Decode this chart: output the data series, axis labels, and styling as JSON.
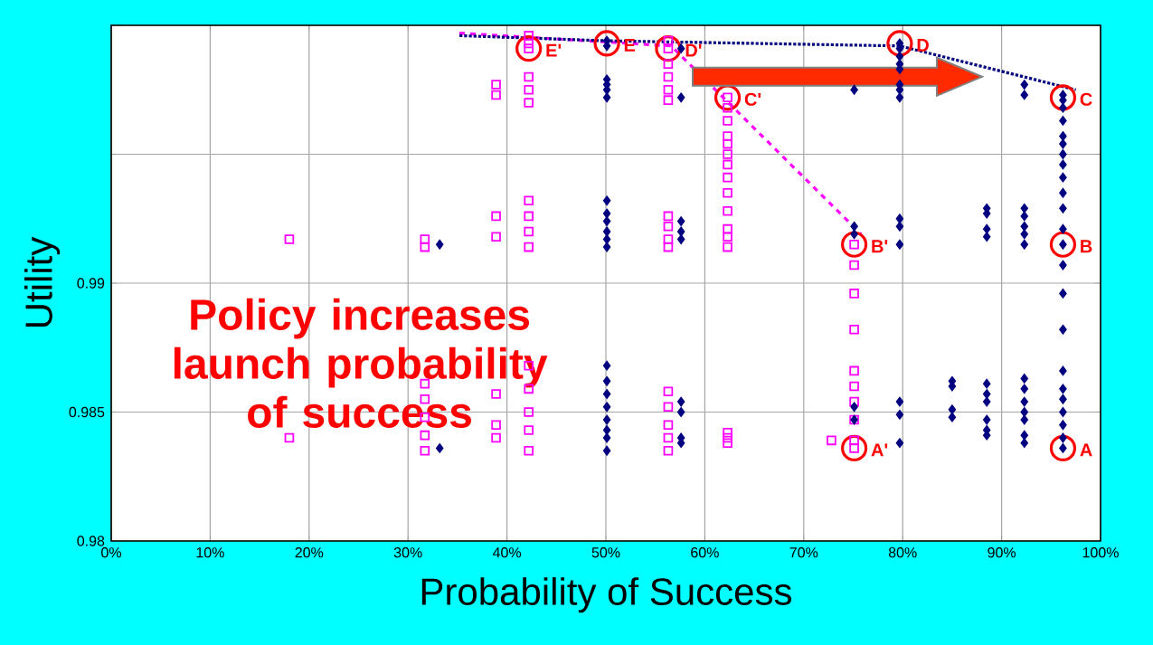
{
  "chart_data": {
    "type": "scatter",
    "xlabel": "Probability of Success",
    "ylabel": "Utility",
    "xlim": [
      0,
      100
    ],
    "ylim": [
      0.98,
      1.0
    ],
    "xticks": [
      {
        "value": 0,
        "label": "0%"
      },
      {
        "value": 10,
        "label": "10%"
      },
      {
        "value": 20,
        "label": "20%"
      },
      {
        "value": 30,
        "label": "30%"
      },
      {
        "value": 40,
        "label": "40%"
      },
      {
        "value": 50,
        "label": "50%"
      },
      {
        "value": 60,
        "label": "60%"
      },
      {
        "value": 70,
        "label": "70%"
      },
      {
        "value": 80,
        "label": "80%"
      },
      {
        "value": 90,
        "label": "90%"
      },
      {
        "value": 100,
        "label": "100%"
      }
    ],
    "yticks": [
      0.98,
      0.985,
      0.99,
      {
        "value": 0.995,
        "label": null
      },
      {
        "value": 1.0,
        "label": null
      }
    ],
    "grid": true,
    "series": [
      {
        "color": "#ff00ff",
        "marker": "square",
        "x": [
          18,
          18,
          31.7,
          31.7,
          31.7,
          31.7,
          31.7,
          31.7,
          31.7,
          38.9,
          38.9,
          38.9,
          38.9,
          38.9,
          38.9,
          38.9,
          42.2,
          42.2,
          42.2,
          42.2,
          42.2,
          42.2,
          42.2,
          42.2,
          42.2,
          42.2,
          42.2,
          42.2,
          42.2,
          42.2,
          42.2,
          56.3,
          56.3,
          56.3,
          56.3,
          56.3,
          56.3,
          56.3,
          56.3,
          56.3,
          56.3,
          56.3,
          56.3,
          56.3,
          56.3,
          56.3,
          62.3,
          62.3,
          62.3,
          62.3,
          62.3,
          62.3,
          62.3,
          62.3,
          62.3,
          62.3,
          62.3,
          62.3,
          62.3,
          62.3,
          62.3,
          62.3,
          72.8,
          75.1,
          75.1,
          75.1,
          75.1,
          75.1,
          75.1,
          75.1,
          75.1,
          75.1,
          75.1
        ],
        "values": [
          0.9917,
          0.984,
          0.9917,
          0.9914,
          0.9861,
          0.9855,
          0.9848,
          0.9841,
          0.9835,
          0.9977,
          0.9973,
          0.9926,
          0.9918,
          0.9857,
          0.9845,
          0.984,
          0.9996,
          0.9993,
          0.9991,
          0.998,
          0.9975,
          0.997,
          0.9932,
          0.9926,
          0.992,
          0.9914,
          0.9868,
          0.9859,
          0.985,
          0.9843,
          0.9835,
          0.9994,
          0.9991,
          0.9985,
          0.998,
          0.9975,
          0.9971,
          0.9926,
          0.9922,
          0.9917,
          0.9914,
          0.9858,
          0.9852,
          0.9845,
          0.984,
          0.9835,
          0.9972,
          0.9968,
          0.9963,
          0.9957,
          0.9954,
          0.995,
          0.9946,
          0.9941,
          0.9935,
          0.9928,
          0.9921,
          0.9918,
          0.9914,
          0.9842,
          0.984,
          0.9838,
          0.9839,
          0.9915,
          0.9907,
          0.9896,
          0.9882,
          0.9866,
          0.986,
          0.9854,
          0.9847,
          0.9839,
          0.9836
        ]
      },
      {
        "color": "#000080",
        "marker": "diamond",
        "x": [
          33.2,
          33.2,
          50.1,
          50.1,
          50.1,
          50.1,
          50.1,
          50.1,
          50.1,
          50.1,
          50.1,
          50.1,
          50.1,
          50.1,
          50.1,
          50.1,
          50.1,
          50.1,
          50.1,
          50.1,
          50.1,
          50.1,
          57.6,
          57.6,
          57.6,
          57.6,
          57.6,
          57.6,
          57.6,
          57.6,
          57.6,
          75.1,
          75.1,
          75.1,
          75.1,
          75.1,
          79.7,
          79.7,
          79.7,
          79.7,
          79.7,
          79.7,
          79.7,
          79.7,
          79.7,
          79.7,
          79.7,
          79.7,
          79.7,
          79.7,
          85,
          85,
          85,
          85,
          88.5,
          88.5,
          88.5,
          88.5,
          88.5,
          88.5,
          88.5,
          88.5,
          88.5,
          88.5,
          92.3,
          92.3,
          92.3,
          92.3,
          92.3,
          92.3,
          92.3,
          92.3,
          92.3,
          92.3,
          92.3,
          92.3,
          92.3,
          92.3,
          96.2,
          96.2,
          96.2,
          96.2,
          96.2,
          96.2,
          96.2,
          96.2,
          96.2,
          96.2,
          96.2,
          96.2,
          96.2,
          96.2,
          96.2,
          96.2,
          96.2,
          96.2,
          96.2,
          96.2,
          96.2,
          96.2,
          96.2
        ],
        "values": [
          0.9915,
          0.9836,
          0.9994,
          0.9992,
          0.9979,
          0.9977,
          0.9975,
          0.9972,
          0.9932,
          0.9927,
          0.9924,
          0.992,
          0.9917,
          0.9914,
          0.9868,
          0.9862,
          0.9857,
          0.9852,
          0.9847,
          0.9843,
          0.984,
          0.9835,
          0.9991,
          0.9972,
          0.9924,
          0.992,
          0.9917,
          0.9854,
          0.985,
          0.984,
          0.9838,
          0.9975,
          0.9922,
          0.9919,
          0.9852,
          0.9847,
          0.9993,
          0.9991,
          0.9988,
          0.9985,
          0.9983,
          0.9977,
          0.9975,
          0.9972,
          0.9925,
          0.9922,
          0.9915,
          0.9854,
          0.9849,
          0.9838,
          0.9862,
          0.986,
          0.9851,
          0.9848,
          0.9929,
          0.9927,
          0.9921,
          0.9918,
          0.9861,
          0.9857,
          0.9854,
          0.9847,
          0.9843,
          0.9841,
          0.9977,
          0.9973,
          0.9929,
          0.9926,
          0.9922,
          0.9919,
          0.9915,
          0.9863,
          0.9859,
          0.9854,
          0.985,
          0.9847,
          0.9841,
          0.9838,
          0.9973,
          0.9971,
          0.9968,
          0.9963,
          0.9957,
          0.9954,
          0.995,
          0.9946,
          0.9941,
          0.9935,
          0.9929,
          0.9921,
          0.9915,
          0.9907,
          0.9896,
          0.9882,
          0.9866,
          0.9859,
          0.9855,
          0.985,
          0.9845,
          0.984,
          0.9836
        ]
      },
      {
        "type": "line",
        "color": "#ff00ff",
        "marker": "none",
        "line_style": "dashed",
        "x": [
          35.2,
          56.6,
          75.8
        ],
        "values": [
          0.9997,
          0.9992,
          0.9919
        ]
      },
      {
        "type": "line",
        "color": "#000080",
        "marker": "none",
        "line_style": "dotted",
        "x": [
          35.2,
          50.1,
          79.7,
          97.5
        ],
        "values": [
          0.9996,
          0.9994,
          0.9992,
          0.9975
        ]
      }
    ],
    "annotations": [
      {
        "text": "A",
        "x": 96.2,
        "y": 0.9836
      },
      {
        "text": "B",
        "x": 96.2,
        "y": 0.9915
      },
      {
        "text": "C",
        "x": 96.2,
        "y": 0.9972
      },
      {
        "text": "D",
        "x": 79.7,
        "y": 0.9993
      },
      {
        "text": "E",
        "x": 50.1,
        "y": 0.9993
      },
      {
        "text": "A'",
        "x": 75.1,
        "y": 0.9836
      },
      {
        "text": "B'",
        "x": 75.1,
        "y": 0.9915
      },
      {
        "text": "C'",
        "x": 62.3,
        "y": 0.9972
      },
      {
        "text": "D'",
        "x": 56.3,
        "y": 0.9991
      },
      {
        "text": "E'",
        "x": 42.2,
        "y": 0.9991
      },
      "Policy increases launch probability of success"
    ]
  }
}
